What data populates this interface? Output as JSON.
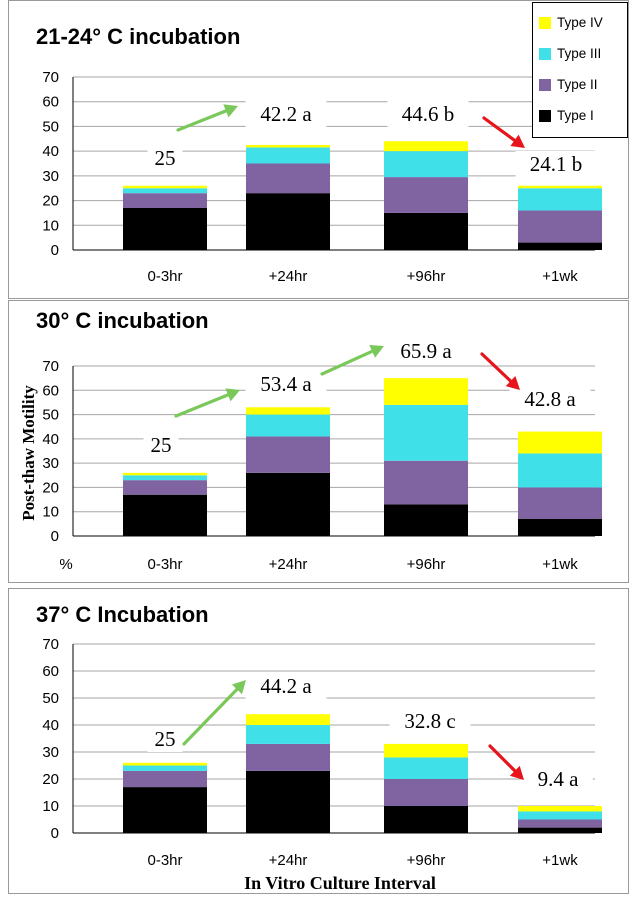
{
  "legend": [
    {
      "label": "Type IV",
      "color": "#FFFF00"
    },
    {
      "label": "Type III",
      "color": "#40E0E8"
    },
    {
      "label": "Type II",
      "color": "#8064A2"
    },
    {
      "label": "Type I",
      "color": "#000000"
    }
  ],
  "y_axis_title": "Post-thaw Motility",
  "y_axis_unit": "%",
  "x_axis_title": "In Vitro Culture Interval",
  "chart_data": [
    {
      "type": "bar",
      "stacked": true,
      "title": "21-24° C incubation",
      "categories": [
        "0-3hr",
        "+24hr",
        "+96hr",
        "+1wk"
      ],
      "ylim": [
        0,
        70
      ],
      "yticks": [
        0,
        10,
        20,
        30,
        40,
        50,
        60,
        70
      ],
      "grid": true,
      "series": [
        {
          "name": "Type I",
          "values": [
            17,
            23,
            15,
            3
          ]
        },
        {
          "name": "Type II",
          "values": [
            6,
            12,
            14.5,
            13
          ]
        },
        {
          "name": "Type III",
          "values": [
            2,
            6.5,
            10.5,
            9
          ]
        },
        {
          "name": "Type IV",
          "values": [
            1,
            1,
            4,
            1
          ]
        }
      ],
      "annotations": [
        "25",
        "42.2 a",
        "44.6 b",
        "24.1 b"
      ]
    },
    {
      "type": "bar",
      "stacked": true,
      "title": "30° C incubation",
      "categories": [
        "0-3hr",
        "+24hr",
        "+96hr",
        "+1wk"
      ],
      "ylim": [
        0,
        70
      ],
      "yticks": [
        0,
        10,
        20,
        30,
        40,
        50,
        60,
        70
      ],
      "grid": true,
      "series": [
        {
          "name": "Type I",
          "values": [
            17,
            26,
            13,
            7
          ]
        },
        {
          "name": "Type II",
          "values": [
            6,
            15,
            18,
            13
          ]
        },
        {
          "name": "Type III",
          "values": [
            2,
            9,
            23,
            14
          ]
        },
        {
          "name": "Type IV",
          "values": [
            1,
            3,
            11,
            9
          ]
        }
      ],
      "annotations": [
        "25",
        "53.4 a",
        "65.9 a",
        "42.8 a"
      ]
    },
    {
      "type": "bar",
      "stacked": true,
      "title": "37° C Incubation",
      "categories": [
        "0-3hr",
        "+24hr",
        "+96hr",
        "+1wk"
      ],
      "ylim": [
        0,
        70
      ],
      "yticks": [
        0,
        10,
        20,
        30,
        40,
        50,
        60,
        70
      ],
      "grid": true,
      "series": [
        {
          "name": "Type I",
          "values": [
            17,
            23,
            10,
            2
          ]
        },
        {
          "name": "Type II",
          "values": [
            6,
            10,
            10,
            3
          ]
        },
        {
          "name": "Type III",
          "values": [
            2,
            7,
            8,
            3
          ]
        },
        {
          "name": "Type IV",
          "values": [
            1,
            4,
            5,
            2
          ]
        }
      ],
      "annotations": [
        "25",
        "44.2 a",
        "32.8 c",
        "9.4 a"
      ]
    }
  ]
}
